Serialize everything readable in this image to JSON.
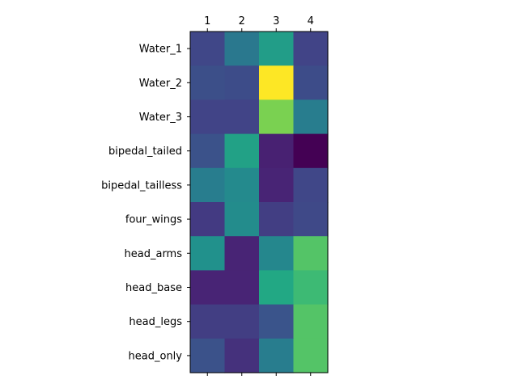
{
  "chart_data": {
    "type": "heatmap",
    "x_labels": [
      "1",
      "2",
      "3",
      "4"
    ],
    "y_labels": [
      "Water_1",
      "Water_2",
      "Water_3",
      "bipedal_tailed",
      "bipedal_tailless",
      "four_wings",
      "head_arms",
      "head_base",
      "head_legs",
      "head_only"
    ],
    "values": [
      [
        0.21,
        0.4,
        0.55,
        0.2
      ],
      [
        0.24,
        0.23,
        1.0,
        0.23
      ],
      [
        0.2,
        0.2,
        0.8,
        0.42
      ],
      [
        0.25,
        0.57,
        0.09,
        0.0
      ],
      [
        0.42,
        0.47,
        0.1,
        0.21
      ],
      [
        0.17,
        0.48,
        0.18,
        0.22
      ],
      [
        0.5,
        0.1,
        0.46,
        0.73
      ],
      [
        0.1,
        0.1,
        0.6,
        0.68
      ],
      [
        0.18,
        0.18,
        0.26,
        0.73
      ],
      [
        0.25,
        0.14,
        0.42,
        0.73
      ]
    ],
    "colormap": "viridis",
    "x_axis_position": "top",
    "grid": false,
    "legend": "none"
  }
}
